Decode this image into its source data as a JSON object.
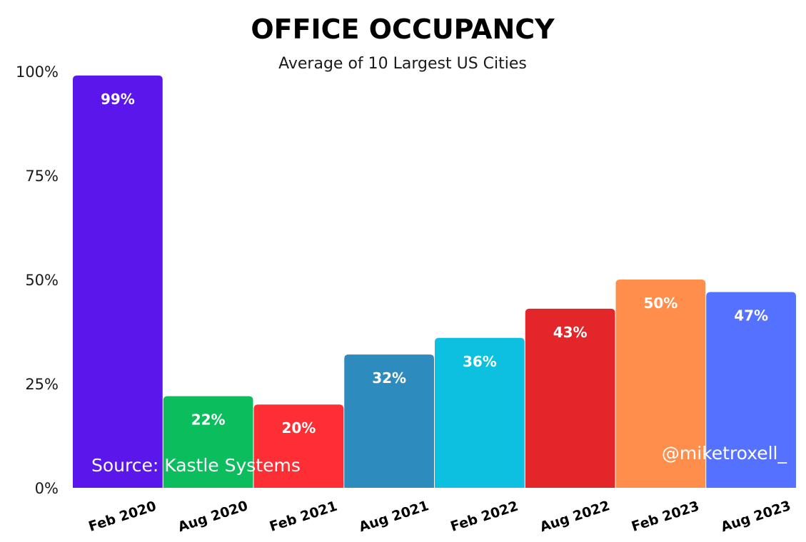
{
  "chart_data": {
    "type": "bar",
    "title": "OFFICE OCCUPANCY",
    "subtitle": "Average of 10 Largest US Cities",
    "categories": [
      "Feb 2020",
      "Aug 2020",
      "Feb 2021",
      "Aug 2021",
      "Feb 2022",
      "Aug 2022",
      "Feb 2023",
      "Aug 2023"
    ],
    "values": [
      99,
      22,
      20,
      32,
      36,
      43,
      50,
      47
    ],
    "data_labels": [
      "99%",
      "22%",
      "20%",
      "32%",
      "36%",
      "43%",
      "50%",
      "47%"
    ],
    "colors": [
      "#5b16eb",
      "#0bbd5c",
      "#fd2f35",
      "#2e8bbd",
      "#0ec0e0",
      "#e2262a",
      "#ff8d4b",
      "#5571ff"
    ],
    "ylim": [
      0,
      100
    ],
    "yticks": [
      0,
      25,
      50,
      75,
      100
    ],
    "ytick_labels": [
      "0%",
      "25%",
      "50%",
      "75%",
      "100%"
    ],
    "xlabel": "",
    "ylabel": "",
    "grid": false,
    "legend": "none",
    "annotations": {
      "source": "Source: Kastle Systems",
      "credit": "@miketroxell_"
    }
  }
}
